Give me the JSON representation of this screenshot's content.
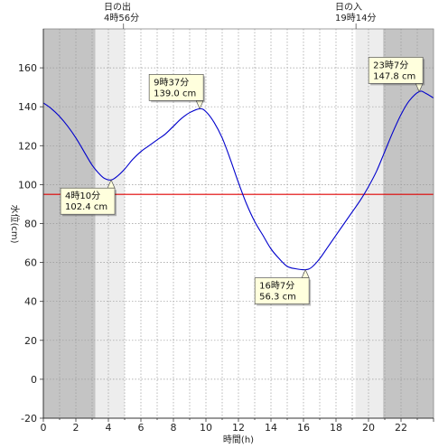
{
  "chart_data": {
    "type": "line",
    "xlabel": "時間(h)",
    "ylabel": "水位(cm)",
    "xlim": [
      0,
      24
    ],
    "ylim": [
      -20,
      180
    ],
    "xticks": [
      "0",
      "2",
      "4",
      "6",
      "8",
      "10",
      "12",
      "14",
      "16",
      "18",
      "20",
      "22"
    ],
    "yticks": [
      "-20",
      "0",
      "20",
      "40",
      "60",
      "80",
      "100",
      "120",
      "140",
      "160"
    ],
    "grid": true,
    "sunrise": {
      "label": "日の出",
      "time": "4時56分",
      "hour": 4.93
    },
    "sunset": {
      "label": "日の入",
      "time": "19時14分",
      "hour": 19.23
    },
    "daylight_bands": {
      "night_end": 3.2,
      "twilight_end": 5.0,
      "twilight_start": 19.2,
      "night_start": 20.9
    },
    "reference_line": {
      "value": 95,
      "color": "#e00000"
    },
    "line_color": "#0000cc",
    "series": [
      {
        "x": [
          0,
          0.5,
          1,
          1.5,
          2,
          2.5,
          3,
          3.5,
          3.8,
          4.17,
          4.5,
          5,
          5.5,
          6,
          6.5,
          7,
          7.5,
          8,
          8.5,
          9,
          9.62,
          10,
          10.5,
          11,
          11.5,
          12,
          12.5,
          13,
          13.5,
          14,
          14.5,
          15,
          15.5,
          16.12,
          16.5,
          17,
          17.5,
          18,
          18.5,
          19,
          19.5,
          20,
          20.5,
          21,
          21.5,
          22,
          22.5,
          23.12,
          23.5,
          24
        ],
        "values": [
          142,
          139,
          135,
          130,
          124,
          117,
          110,
          105,
          103,
          102.4,
          104,
          108,
          113,
          117,
          120,
          123,
          126,
          130,
          134,
          137,
          139,
          137.5,
          132,
          124,
          113,
          101,
          90,
          81,
          74,
          67,
          62,
          58,
          56.8,
          56.3,
          57.5,
          62,
          68,
          74,
          80,
          86,
          92,
          99,
          107,
          117,
          127,
          136,
          143,
          147.8,
          147,
          144.5
        ]
      }
    ],
    "annotations": [
      {
        "time": "4時10分",
        "value": "102.4 cm",
        "x": 4.17,
        "y": 102.4,
        "placement": "below"
      },
      {
        "time": "9時37分",
        "value": "139.0 cm",
        "x": 9.62,
        "y": 139.0,
        "placement": "above"
      },
      {
        "time": "16時7分",
        "value": "56.3 cm",
        "x": 16.12,
        "y": 56.3,
        "placement": "below"
      },
      {
        "time": "23時7分",
        "value": "147.8 cm",
        "x": 23.12,
        "y": 147.8,
        "placement": "above"
      }
    ]
  }
}
